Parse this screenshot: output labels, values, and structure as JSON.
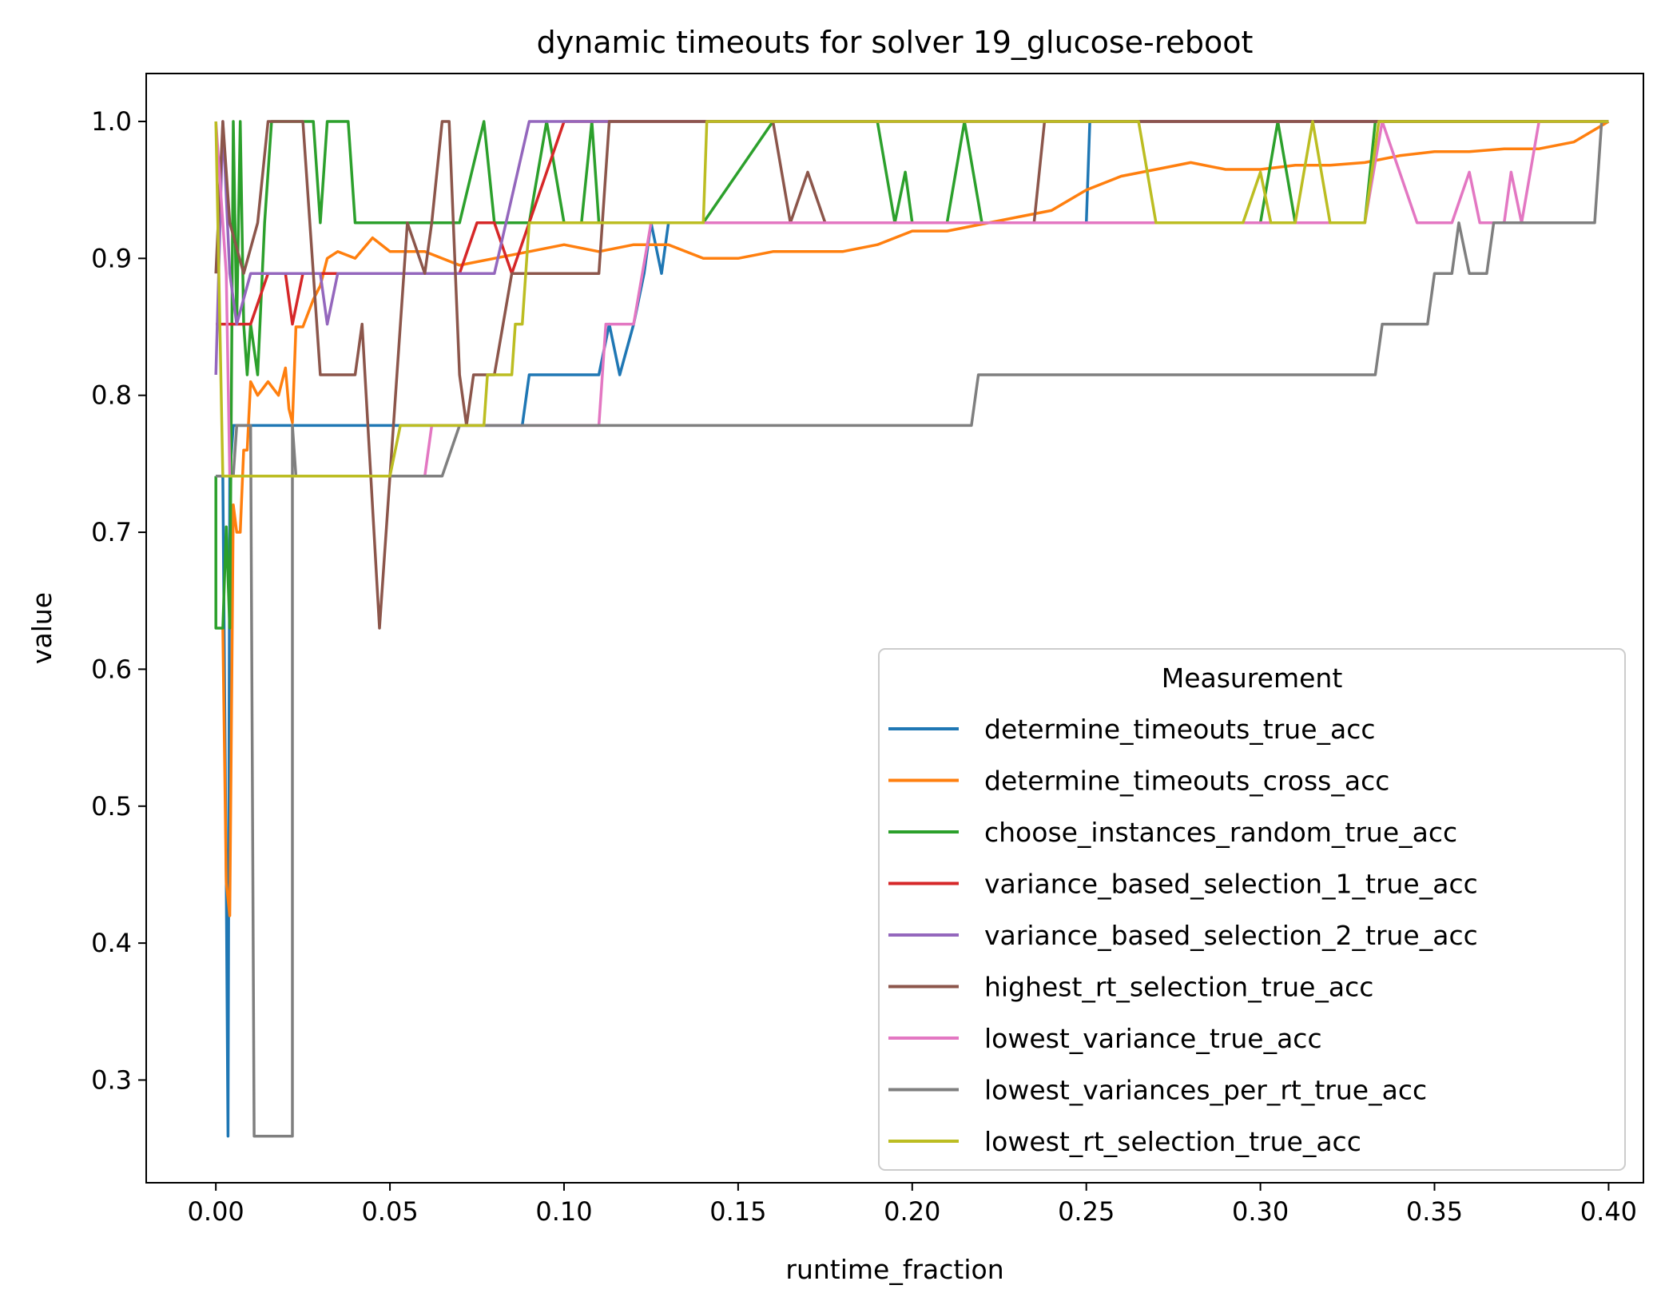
{
  "chart_data": {
    "type": "line",
    "title": "dynamic timeouts for solver 19_glucose-reboot",
    "xlabel": "runtime_fraction",
    "ylabel": "value",
    "xlim": [
      -0.02,
      0.41
    ],
    "ylim": [
      0.225,
      1.035
    ],
    "x_ticks": [
      "0.00",
      "0.05",
      "0.10",
      "0.15",
      "0.20",
      "0.25",
      "0.30",
      "0.35",
      "0.40"
    ],
    "y_ticks": [
      "0.3",
      "0.4",
      "0.5",
      "0.6",
      "0.7",
      "0.8",
      "0.9",
      "1.0"
    ],
    "grid": false,
    "legend": {
      "title": "Measurement",
      "placement": "lower right"
    },
    "series": [
      {
        "name": "determine_timeouts_true_acc",
        "color": "#1f77b4",
        "points": [
          [
            0,
            0.741
          ],
          [
            0.002,
            0.741
          ],
          [
            0.003,
            0.444
          ],
          [
            0.0035,
            0.259
          ],
          [
            0.004,
            0.741
          ],
          [
            0.005,
            0.778
          ],
          [
            0.01,
            0.778
          ],
          [
            0.02,
            0.778
          ],
          [
            0.045,
            0.778
          ],
          [
            0.047,
            0.778
          ],
          [
            0.088,
            0.778
          ],
          [
            0.09,
            0.815
          ],
          [
            0.11,
            0.815
          ],
          [
            0.113,
            0.852
          ],
          [
            0.116,
            0.815
          ],
          [
            0.12,
            0.852
          ],
          [
            0.123,
            0.889
          ],
          [
            0.125,
            0.926
          ],
          [
            0.128,
            0.889
          ],
          [
            0.13,
            0.926
          ],
          [
            0.25,
            0.926
          ],
          [
            0.251,
            1.0
          ],
          [
            0.4,
            1.0
          ]
        ]
      },
      {
        "name": "determine_timeouts_cross_acc",
        "color": "#ff7f0e",
        "points": [
          [
            0.002,
            0.63
          ],
          [
            0.003,
            0.444
          ],
          [
            0.004,
            0.42
          ],
          [
            0.005,
            0.72
          ],
          [
            0.006,
            0.7
          ],
          [
            0.007,
            0.7
          ],
          [
            0.008,
            0.76
          ],
          [
            0.009,
            0.76
          ],
          [
            0.01,
            0.81
          ],
          [
            0.012,
            0.8
          ],
          [
            0.015,
            0.81
          ],
          [
            0.018,
            0.8
          ],
          [
            0.02,
            0.82
          ],
          [
            0.021,
            0.79
          ],
          [
            0.022,
            0.78
          ],
          [
            0.023,
            0.85
          ],
          [
            0.025,
            0.85
          ],
          [
            0.028,
            0.87
          ],
          [
            0.03,
            0.88
          ],
          [
            0.032,
            0.9
          ],
          [
            0.035,
            0.905
          ],
          [
            0.04,
            0.9
          ],
          [
            0.045,
            0.915
          ],
          [
            0.05,
            0.905
          ],
          [
            0.06,
            0.905
          ],
          [
            0.07,
            0.895
          ],
          [
            0.08,
            0.9
          ],
          [
            0.09,
            0.905
          ],
          [
            0.1,
            0.91
          ],
          [
            0.11,
            0.905
          ],
          [
            0.12,
            0.91
          ],
          [
            0.13,
            0.91
          ],
          [
            0.14,
            0.9
          ],
          [
            0.15,
            0.9
          ],
          [
            0.16,
            0.905
          ],
          [
            0.17,
            0.905
          ],
          [
            0.18,
            0.905
          ],
          [
            0.19,
            0.91
          ],
          [
            0.2,
            0.92
          ],
          [
            0.21,
            0.92
          ],
          [
            0.22,
            0.925
          ],
          [
            0.23,
            0.93
          ],
          [
            0.24,
            0.935
          ],
          [
            0.25,
            0.95
          ],
          [
            0.26,
            0.96
          ],
          [
            0.27,
            0.965
          ],
          [
            0.28,
            0.97
          ],
          [
            0.29,
            0.965
          ],
          [
            0.3,
            0.965
          ],
          [
            0.31,
            0.968
          ],
          [
            0.32,
            0.968
          ],
          [
            0.33,
            0.97
          ],
          [
            0.34,
            0.975
          ],
          [
            0.35,
            0.978
          ],
          [
            0.36,
            0.978
          ],
          [
            0.37,
            0.98
          ],
          [
            0.38,
            0.98
          ],
          [
            0.39,
            0.985
          ],
          [
            0.4,
            1.0
          ]
        ]
      },
      {
        "name": "choose_instances_random_true_acc",
        "color": "#2ca02c",
        "points": [
          [
            0,
            0.741
          ],
          [
            0,
            0.63
          ],
          [
            0.002,
            0.63
          ],
          [
            0.003,
            0.704
          ],
          [
            0.004,
            0.63
          ],
          [
            0.005,
            1.0
          ],
          [
            0.006,
            0.852
          ],
          [
            0.007,
            1.0
          ],
          [
            0.008,
            0.852
          ],
          [
            0.009,
            0.815
          ],
          [
            0.01,
            0.852
          ],
          [
            0.012,
            0.815
          ],
          [
            0.014,
            0.926
          ],
          [
            0.016,
            1.0
          ],
          [
            0.028,
            1.0
          ],
          [
            0.03,
            0.926
          ],
          [
            0.032,
            1.0
          ],
          [
            0.038,
            1.0
          ],
          [
            0.04,
            0.926
          ],
          [
            0.07,
            0.926
          ],
          [
            0.077,
            1.0
          ],
          [
            0.08,
            0.926
          ],
          [
            0.09,
            0.926
          ],
          [
            0.095,
            1.0
          ],
          [
            0.1,
            0.926
          ],
          [
            0.105,
            0.926
          ],
          [
            0.108,
            1.0
          ],
          [
            0.11,
            0.926
          ],
          [
            0.14,
            0.926
          ],
          [
            0.16,
            1.0
          ],
          [
            0.19,
            1.0
          ],
          [
            0.195,
            0.926
          ],
          [
            0.198,
            0.963
          ],
          [
            0.2,
            0.926
          ],
          [
            0.21,
            0.926
          ],
          [
            0.215,
            1.0
          ],
          [
            0.22,
            0.926
          ],
          [
            0.3,
            0.926
          ],
          [
            0.305,
            1.0
          ],
          [
            0.31,
            0.926
          ],
          [
            0.33,
            0.926
          ],
          [
            0.333,
            1.0
          ],
          [
            0.4,
            1.0
          ]
        ]
      },
      {
        "name": "variance_based_selection_1_true_acc",
        "color": "#d62728",
        "points": [
          [
            0,
            0.852
          ],
          [
            0.01,
            0.852
          ],
          [
            0.015,
            0.889
          ],
          [
            0.02,
            0.889
          ],
          [
            0.022,
            0.852
          ],
          [
            0.025,
            0.889
          ],
          [
            0.07,
            0.889
          ],
          [
            0.075,
            0.926
          ],
          [
            0.08,
            0.926
          ],
          [
            0.085,
            0.889
          ],
          [
            0.09,
            0.926
          ],
          [
            0.095,
            0.963
          ],
          [
            0.1,
            1.0
          ],
          [
            0.4,
            1.0
          ]
        ]
      },
      {
        "name": "variance_based_selection_2_true_acc",
        "color": "#9467bd",
        "points": [
          [
            0,
            0.815
          ],
          [
            0.002,
            1.0
          ],
          [
            0.004,
            0.889
          ],
          [
            0.006,
            0.852
          ],
          [
            0.01,
            0.889
          ],
          [
            0.03,
            0.889
          ],
          [
            0.032,
            0.852
          ],
          [
            0.035,
            0.889
          ],
          [
            0.08,
            0.889
          ],
          [
            0.09,
            1.0
          ],
          [
            0.4,
            1.0
          ]
        ]
      },
      {
        "name": "highest_rt_selection_true_acc",
        "color": "#8c564b",
        "points": [
          [
            0,
            0.889
          ],
          [
            0.002,
            1.0
          ],
          [
            0.004,
            0.926
          ],
          [
            0.008,
            0.889
          ],
          [
            0.012,
            0.926
          ],
          [
            0.015,
            1.0
          ],
          [
            0.025,
            1.0
          ],
          [
            0.03,
            0.815
          ],
          [
            0.04,
            0.815
          ],
          [
            0.042,
            0.852
          ],
          [
            0.047,
            0.63
          ],
          [
            0.05,
            0.741
          ],
          [
            0.055,
            0.926
          ],
          [
            0.06,
            0.889
          ],
          [
            0.062,
            0.926
          ],
          [
            0.065,
            1.0
          ],
          [
            0.067,
            1.0
          ],
          [
            0.07,
            0.815
          ],
          [
            0.072,
            0.778
          ],
          [
            0.074,
            0.815
          ],
          [
            0.08,
            0.815
          ],
          [
            0.085,
            0.889
          ],
          [
            0.11,
            0.889
          ],
          [
            0.113,
            1.0
          ],
          [
            0.16,
            1.0
          ],
          [
            0.165,
            0.926
          ],
          [
            0.17,
            0.963
          ],
          [
            0.175,
            0.926
          ],
          [
            0.235,
            0.926
          ],
          [
            0.238,
            1.0
          ],
          [
            0.4,
            1.0
          ]
        ]
      },
      {
        "name": "lowest_variance_true_acc",
        "color": "#e377c2",
        "points": [
          [
            0,
            1.0
          ],
          [
            0.003,
            0.889
          ],
          [
            0.004,
            0.741
          ],
          [
            0.005,
            0.741
          ],
          [
            0.06,
            0.741
          ],
          [
            0.062,
            0.778
          ],
          [
            0.11,
            0.778
          ],
          [
            0.112,
            0.852
          ],
          [
            0.12,
            0.852
          ],
          [
            0.125,
            0.926
          ],
          [
            0.33,
            0.926
          ],
          [
            0.335,
            1.0
          ],
          [
            0.345,
            0.926
          ],
          [
            0.355,
            0.926
          ],
          [
            0.36,
            0.963
          ],
          [
            0.363,
            0.926
          ],
          [
            0.37,
            0.926
          ],
          [
            0.372,
            0.963
          ],
          [
            0.375,
            0.926
          ],
          [
            0.38,
            1.0
          ],
          [
            0.4,
            1.0
          ]
        ]
      },
      {
        "name": "lowest_variances_per_rt_true_acc",
        "color": "#7f7f7f",
        "points": [
          [
            0,
            0.741
          ],
          [
            0.005,
            0.741
          ],
          [
            0.006,
            0.778
          ],
          [
            0.01,
            0.778
          ],
          [
            0.011,
            0.259
          ],
          [
            0.022,
            0.259
          ],
          [
            0.022,
            0.778
          ],
          [
            0.023,
            0.741
          ],
          [
            0.065,
            0.741
          ],
          [
            0.07,
            0.778
          ],
          [
            0.217,
            0.778
          ],
          [
            0.219,
            0.815
          ],
          [
            0.333,
            0.815
          ],
          [
            0.335,
            0.852
          ],
          [
            0.348,
            0.852
          ],
          [
            0.35,
            0.889
          ],
          [
            0.355,
            0.889
          ],
          [
            0.357,
            0.926
          ],
          [
            0.36,
            0.889
          ],
          [
            0.365,
            0.889
          ],
          [
            0.367,
            0.926
          ],
          [
            0.396,
            0.926
          ],
          [
            0.398,
            1.0
          ],
          [
            0.4,
            1.0
          ]
        ]
      },
      {
        "name": "lowest_rt_selection_true_acc",
        "color": "#bcbd22",
        "points": [
          [
            0,
            1.0
          ],
          [
            0.002,
            0.741
          ],
          [
            0.003,
            0.741
          ],
          [
            0.05,
            0.741
          ],
          [
            0.053,
            0.778
          ],
          [
            0.077,
            0.778
          ],
          [
            0.078,
            0.815
          ],
          [
            0.085,
            0.815
          ],
          [
            0.086,
            0.852
          ],
          [
            0.088,
            0.852
          ],
          [
            0.09,
            0.926
          ],
          [
            0.14,
            0.926
          ],
          [
            0.141,
            1.0
          ],
          [
            0.265,
            1.0
          ],
          [
            0.27,
            0.926
          ],
          [
            0.295,
            0.926
          ],
          [
            0.3,
            0.963
          ],
          [
            0.303,
            0.926
          ],
          [
            0.31,
            0.926
          ],
          [
            0.315,
            1.0
          ],
          [
            0.32,
            0.926
          ],
          [
            0.33,
            0.926
          ],
          [
            0.334,
            1.0
          ],
          [
            0.4,
            1.0
          ]
        ]
      }
    ]
  }
}
